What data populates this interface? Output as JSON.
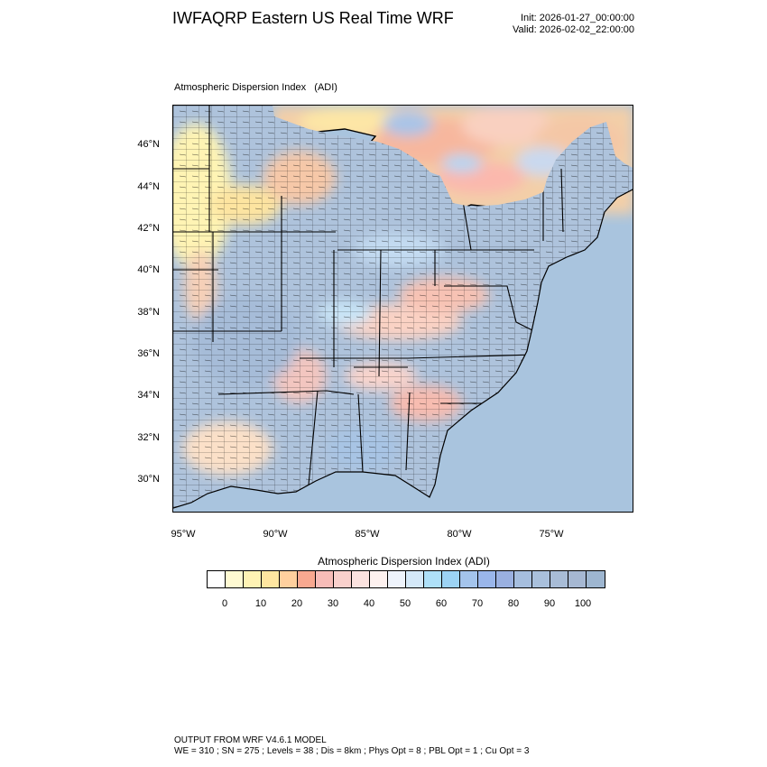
{
  "header": {
    "title": "IWFAQRP Eastern US Real Time WRF",
    "init": "Init: 2026-01-27_00:00:00",
    "valid": "Valid: 2026-02-02_22:00:00"
  },
  "map": {
    "subtitle": "Atmospheric Dispersion Index   (ADI)",
    "lat_labels": [
      "46°N",
      "44°N",
      "42°N",
      "40°N",
      "38°N",
      "36°N",
      "34°N",
      "32°N",
      "30°N"
    ],
    "lon_labels": [
      "95°W",
      "90°W",
      "85°W",
      "80°W",
      "75°W"
    ],
    "colors": {
      "ocean": "#a9c4de",
      "land_low": "#fff8c8",
      "land_mid": "#f6b8a8",
      "land_high": "#a4c0e6",
      "borders": "#000000"
    }
  },
  "colorbar": {
    "title": "Atmospheric Dispersion Index  (ADI)",
    "labels": [
      "0",
      "10",
      "20",
      "30",
      "40",
      "50",
      "60",
      "70",
      "80",
      "90",
      "100"
    ],
    "colors": [
      "#ffffff",
      "#fffad2",
      "#fff3b4",
      "#ffe6a0",
      "#ffd09e",
      "#f8a890",
      "#f7bcb8",
      "#f9d0cc",
      "#fbe2df",
      "#fdf1ef",
      "#eef3fb",
      "#d4e8f8",
      "#aee0f8",
      "#9cd3f4",
      "#a4c4ec",
      "#9ab6ea",
      "#9ab0e0",
      "#a6bede",
      "#a9c0dc",
      "#a8bcd6",
      "#a6b8d2",
      "#9eb6d0"
    ]
  },
  "footer": {
    "line1": "OUTPUT FROM WRF V4.6.1 MODEL",
    "line2": "WE = 310 ; SN = 275 ; Levels = 38 ; Dis = 8km ; Phys Opt = 8 ; PBL Opt = 1 ; Cu Opt = 3"
  }
}
